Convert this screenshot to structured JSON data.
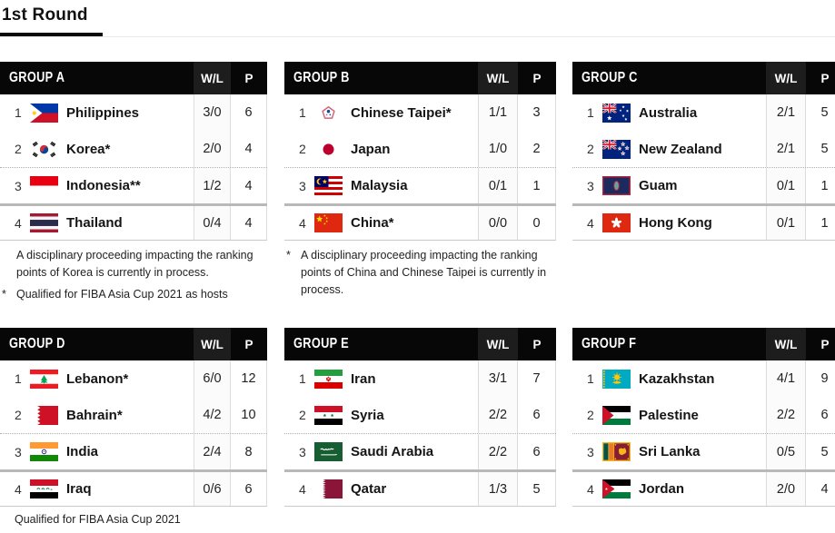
{
  "page": {
    "title": "1st Round"
  },
  "table_columns": {
    "wl_label": "W/L",
    "points_label": "P"
  },
  "groups": [
    {
      "title": "GROUP A",
      "rows": [
        {
          "rank": "1",
          "flag": "philippines",
          "team": "Philippines",
          "wl": "3/0",
          "points": "6"
        },
        {
          "rank": "2",
          "flag": "korea",
          "team": "Korea*",
          "wl": "2/0",
          "points": "4"
        },
        {
          "rank": "3",
          "flag": "indonesia",
          "team": "Indonesia**",
          "wl": "1/2",
          "points": "4"
        },
        {
          "rank": "4",
          "flag": "thailand",
          "team": "Thailand",
          "wl": "0/4",
          "points": "4"
        }
      ],
      "notes": [
        {
          "marker": "",
          "text": "A disciplinary proceeding impacting the ranking points of Korea is currently in process."
        },
        {
          "marker": "*",
          "text": "Qualified for FIBA Asia Cup 2021 as hosts"
        }
      ]
    },
    {
      "title": "GROUP B",
      "rows": [
        {
          "rank": "1",
          "flag": "chinese-taipei",
          "team": "Chinese Taipei*",
          "wl": "1/1",
          "points": "3"
        },
        {
          "rank": "2",
          "flag": "japan",
          "team": "Japan",
          "wl": "1/0",
          "points": "2"
        },
        {
          "rank": "3",
          "flag": "malaysia",
          "team": "Malaysia",
          "wl": "0/1",
          "points": "1"
        },
        {
          "rank": "4",
          "flag": "china",
          "team": "China*",
          "wl": "0/0",
          "points": "0"
        }
      ],
      "notes": [
        {
          "marker": "*",
          "text": "A disciplinary proceeding impacting the ranking points of China and Chinese Taipei is currently in process."
        }
      ]
    },
    {
      "title": "GROUP C",
      "rows": [
        {
          "rank": "1",
          "flag": "australia",
          "team": "Australia",
          "wl": "2/1",
          "points": "5"
        },
        {
          "rank": "2",
          "flag": "new-zealand",
          "team": "New Zealand",
          "wl": "2/1",
          "points": "5"
        },
        {
          "rank": "3",
          "flag": "guam",
          "team": "Guam",
          "wl": "0/1",
          "points": "1"
        },
        {
          "rank": "4",
          "flag": "hong-kong",
          "team": "Hong Kong",
          "wl": "0/1",
          "points": "1"
        }
      ],
      "notes": []
    },
    {
      "title": "GROUP D",
      "rows": [
        {
          "rank": "1",
          "flag": "lebanon",
          "team": "Lebanon*",
          "wl": "6/0",
          "points": "12"
        },
        {
          "rank": "2",
          "flag": "bahrain",
          "team": "Bahrain*",
          "wl": "4/2",
          "points": "10"
        },
        {
          "rank": "3",
          "flag": "india",
          "team": "India",
          "wl": "2/4",
          "points": "8"
        },
        {
          "rank": "4",
          "flag": "iraq",
          "team": "Iraq",
          "wl": "0/6",
          "points": "6"
        }
      ],
      "notes": [
        {
          "marker": "",
          "text": "Qualified for FIBA Asia Cup 2021"
        }
      ]
    },
    {
      "title": "GROUP E",
      "rows": [
        {
          "rank": "1",
          "flag": "iran",
          "team": "Iran",
          "wl": "3/1",
          "points": "7"
        },
        {
          "rank": "2",
          "flag": "syria",
          "team": "Syria",
          "wl": "2/2",
          "points": "6"
        },
        {
          "rank": "3",
          "flag": "saudi-arabia",
          "team": "Saudi Arabia",
          "wl": "2/2",
          "points": "6"
        },
        {
          "rank": "4",
          "flag": "qatar",
          "team": "Qatar",
          "wl": "1/3",
          "points": "5"
        }
      ],
      "notes": []
    },
    {
      "title": "GROUP F",
      "rows": [
        {
          "rank": "1",
          "flag": "kazakhstan",
          "team": "Kazakhstan",
          "wl": "4/1",
          "points": "9"
        },
        {
          "rank": "2",
          "flag": "palestine",
          "team": "Palestine",
          "wl": "2/2",
          "points": "6"
        },
        {
          "rank": "3",
          "flag": "sri-lanka",
          "team": "Sri Lanka",
          "wl": "0/5",
          "points": "5"
        },
        {
          "rank": "4",
          "flag": "jordan",
          "team": "Jordan",
          "wl": "2/0",
          "points": "4"
        }
      ],
      "notes": []
    }
  ],
  "colors": {
    "header_bg": "#070707",
    "header_wl_bg": "#1d1d1d",
    "qualification_line": "#b9b9b9",
    "grid_line": "#dcdcdc",
    "tab_underline": "#0a0a0a"
  }
}
